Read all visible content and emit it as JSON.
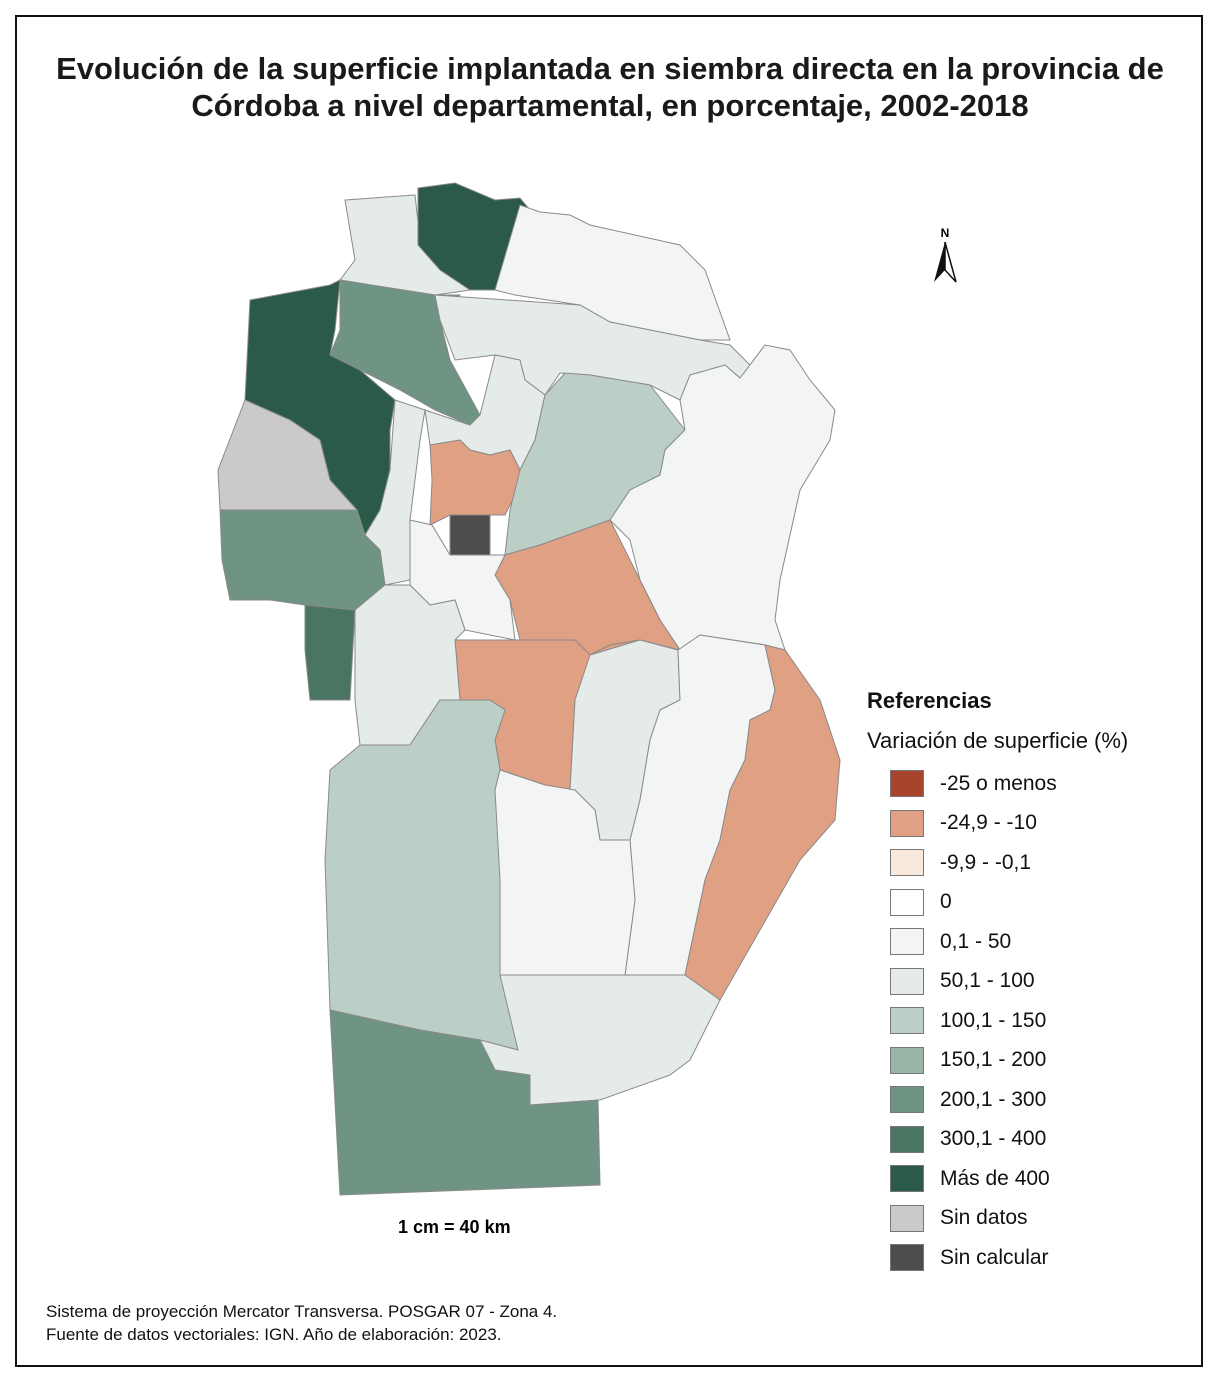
{
  "title": "Evolución de la superficie implantada en siembra directa en la provincia de Córdoba a nivel departamental, en porcentaje, 2002-2018",
  "north_label": "N",
  "scale": "1 cm = 40 km",
  "legend": {
    "title": "Referencias",
    "subtitle": "Variación de superficie (%)",
    "items": [
      {
        "label": "-25 o menos",
        "color": "#a8442c"
      },
      {
        "label": "-24,9 - -10",
        "color": "#e0a083"
      },
      {
        "label": "-9,9 - -0,1",
        "color": "#f8e9dc"
      },
      {
        "label": "0",
        "color": "#ffffff"
      },
      {
        "label": "0,1 - 50",
        "color": "#f3f5f4"
      },
      {
        "label": "50,1 - 100",
        "color": "#e5ebe8"
      },
      {
        "label": "100,1 - 150",
        "color": "#bccfc6"
      },
      {
        "label": "150,1 - 200",
        "color": "#98b5a7"
      },
      {
        "label": "200,1 - 300",
        "color": "#6f9483"
      },
      {
        "label": "300,1 - 400",
        "color": "#4a7563"
      },
      {
        "label": "Más de 400",
        "color": "#2b5a48"
      },
      {
        "label": "Sin datos",
        "color": "#cacaca"
      },
      {
        "label": "Sin calcular",
        "color": "#4d4d4d"
      }
    ]
  },
  "footer": [
    "Sistema de proyección Mercator Transversa. POSGAR 07 - Zona 4.",
    "Fuente de datos vectoriales: IGN. Año de elaboración: 2023."
  ]
}
